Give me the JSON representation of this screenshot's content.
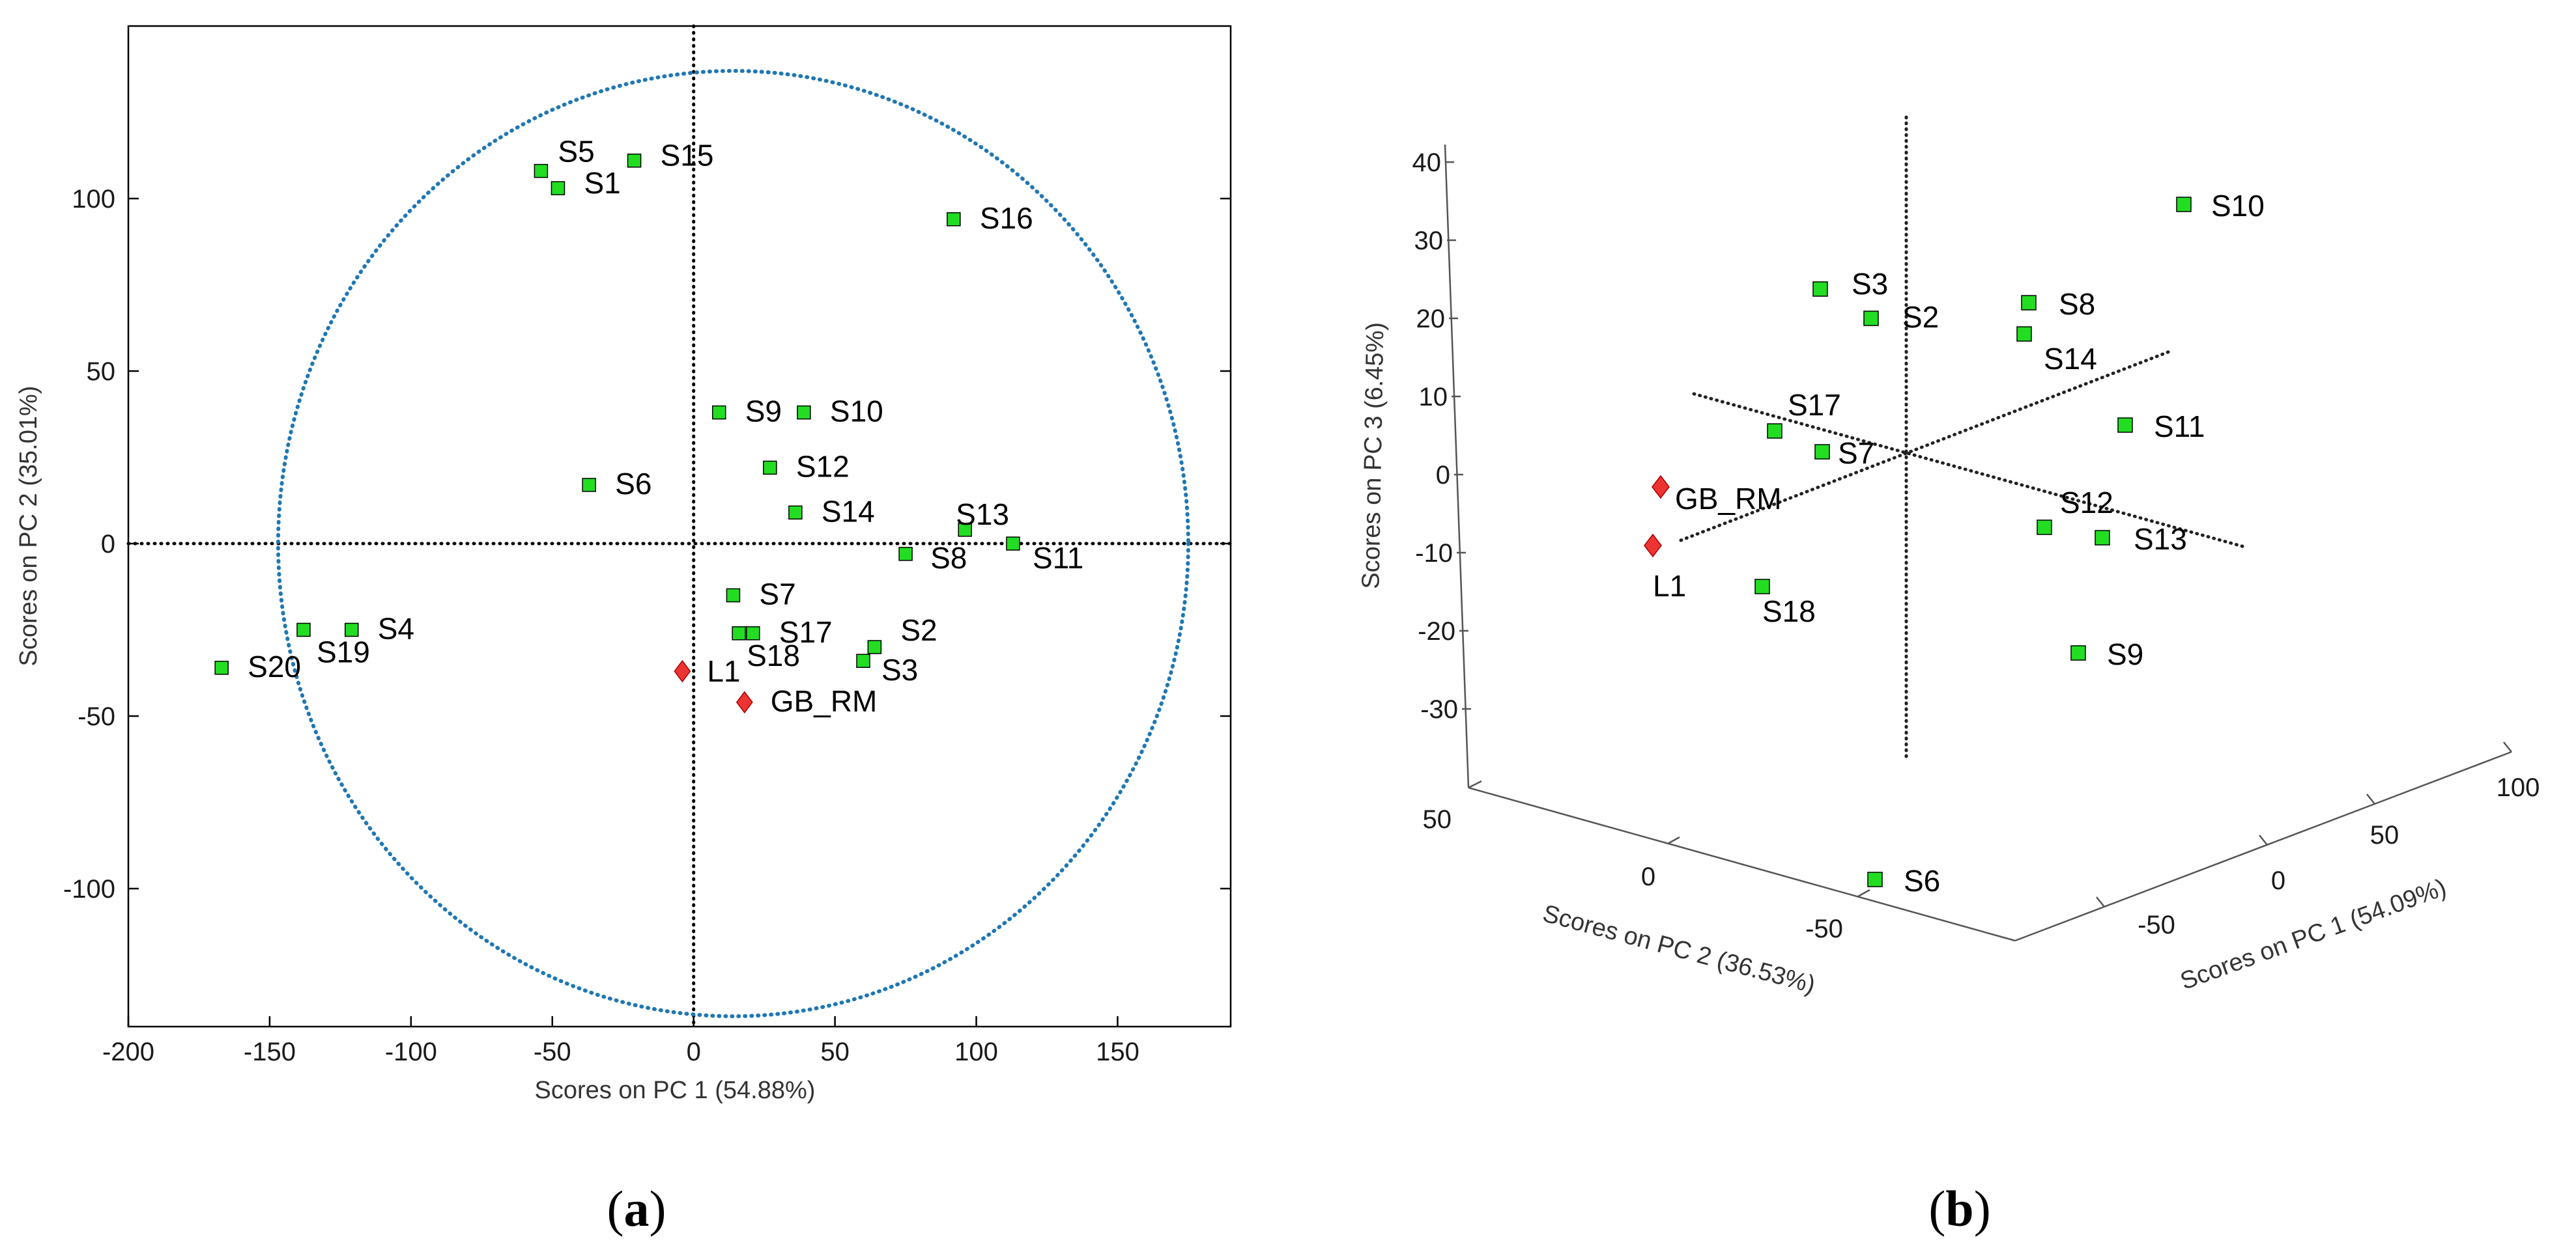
{
  "colors": {
    "sample": "#22dd22",
    "reference": "#ee3333",
    "circle": "#1f77b4",
    "axis": "#000000"
  },
  "chart_data": [
    {
      "type": "scatter",
      "panel_label": "a",
      "xlabel": "Scores on PC 1 (54.88%)",
      "ylabel": "Scores on PC 2 (35.01%)",
      "xlim": [
        -200,
        190
      ],
      "ylim": [
        -140,
        150
      ],
      "xticks": [
        -200,
        -150,
        -100,
        -50,
        0,
        50,
        100,
        150
      ],
      "yticks": [
        -100,
        -50,
        0,
        50,
        100
      ],
      "confidence_ellipse": {
        "cx": 14,
        "cy": 0,
        "rx": 161,
        "ry": 137
      },
      "series": [
        {
          "name": "samples",
          "marker": "square",
          "points": [
            {
              "label": "S1",
              "x": -48,
              "y": 103
            },
            {
              "label": "S2",
              "x": 64,
              "y": -30
            },
            {
              "label": "S3",
              "x": 60,
              "y": -34
            },
            {
              "label": "S4",
              "x": -121,
              "y": -25
            },
            {
              "label": "S5",
              "x": -54,
              "y": 108
            },
            {
              "label": "S6",
              "x": -37,
              "y": 17
            },
            {
              "label": "S7",
              "x": 14,
              "y": -15
            },
            {
              "label": "S8",
              "x": 75,
              "y": -3
            },
            {
              "label": "S9",
              "x": 9,
              "y": 38
            },
            {
              "label": "S10",
              "x": 39,
              "y": 38
            },
            {
              "label": "S11",
              "x": 113,
              "y": 0
            },
            {
              "label": "S12",
              "x": 27,
              "y": 22
            },
            {
              "label": "S13",
              "x": 96,
              "y": 4
            },
            {
              "label": "S14",
              "x": 36,
              "y": 9
            },
            {
              "label": "S15",
              "x": -21,
              "y": 111
            },
            {
              "label": "S16",
              "x": 92,
              "y": 94
            },
            {
              "label": "S17",
              "x": 21,
              "y": -26
            },
            {
              "label": "S18",
              "x": 16,
              "y": -26
            },
            {
              "label": "S19",
              "x": -138,
              "y": -25
            },
            {
              "label": "S20",
              "x": -167,
              "y": -36
            }
          ]
        },
        {
          "name": "references",
          "marker": "diamond",
          "points": [
            {
              "label": "L1",
              "x": -4,
              "y": -37
            },
            {
              "label": "GB_RM",
              "x": 18,
              "y": -46
            }
          ]
        }
      ]
    },
    {
      "type": "scatter3d",
      "panel_label": "b",
      "xlabel": "Scores on PC 1 (54.09%)",
      "ylabel": "Scores on PC 2 (36.53%)",
      "zlabel": "Scores on PC 3 (6.45%)",
      "xticks": [
        -50,
        0,
        50,
        100
      ],
      "yticks": [
        -50,
        0,
        50
      ],
      "zticks": [
        -30,
        -20,
        -10,
        0,
        10,
        20,
        30,
        40
      ],
      "series": [
        {
          "name": "samples",
          "marker": "square",
          "points": [
            {
              "label": "S2",
              "x": -45,
              "y": -60,
              "z": 15
            },
            {
              "label": "S3",
              "x": -55,
              "y": -20,
              "z": 15
            },
            {
              "label": "S6",
              "x": -100,
              "y": -75,
              "z": -2
            },
            {
              "label": "S7",
              "x": -20,
              "y": 0,
              "z": 4
            },
            {
              "label": "S8",
              "x": 20,
              "y": -80,
              "z": 10
            },
            {
              "label": "S9",
              "x": 45,
              "y": -52,
              "z": -45
            },
            {
              "label": "S10",
              "x": 100,
              "y": -51,
              "z": 5
            },
            {
              "label": "S11",
              "x": 50,
              "y": -70,
              "z": -5
            },
            {
              "label": "S12",
              "x": 30,
              "y": -62,
              "z": -20
            },
            {
              "label": "S13",
              "x": 50,
              "y": -78,
              "z": -20
            },
            {
              "label": "S14",
              "x": 20,
              "y": -80,
              "z": 5
            },
            {
              "label": "S17",
              "x": -35,
              "y": 5,
              "z": 0
            },
            {
              "label": "S18",
              "x": -20,
              "y": 20,
              "z": -30
            }
          ]
        },
        {
          "name": "references",
          "marker": "diamond",
          "points": [
            {
              "label": "L1",
              "x": -25,
              "y": 42,
              "z": -10
            },
            {
              "label": "GB_RM",
              "x": -20,
              "y": 40,
              "z": -3
            }
          ]
        }
      ]
    }
  ]
}
